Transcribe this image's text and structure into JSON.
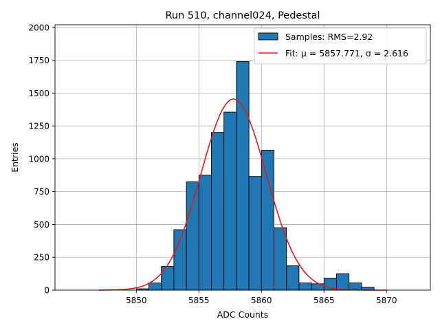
{
  "chart_data": {
    "type": "bar",
    "title": "Run 510, channel024, Pedestal",
    "xlabel": "ADC Counts",
    "ylabel": "Entries",
    "xlim": [
      5843.5,
      5873.5
    ],
    "ylim": [
      0,
      2020
    ],
    "xticks": [
      5850,
      5855,
      5860,
      5865,
      5870
    ],
    "yticks": [
      0,
      250,
      500,
      750,
      1000,
      1250,
      1500,
      1750,
      2000
    ],
    "grid": true,
    "legend_position": "top-right",
    "bin_width": 1,
    "bins": [
      {
        "left": 5850,
        "count": 10
      },
      {
        "left": 5851,
        "count": 55
      },
      {
        "left": 5852,
        "count": 180
      },
      {
        "left": 5853,
        "count": 460
      },
      {
        "left": 5854,
        "count": 825
      },
      {
        "left": 5855,
        "count": 875
      },
      {
        "left": 5856,
        "count": 1200
      },
      {
        "left": 5857,
        "count": 1355
      },
      {
        "left": 5858,
        "count": 1740
      },
      {
        "left": 5859,
        "count": 865
      },
      {
        "left": 5860,
        "count": 1065
      },
      {
        "left": 5861,
        "count": 475
      },
      {
        "left": 5862,
        "count": 185
      },
      {
        "left": 5863,
        "count": 55
      },
      {
        "left": 5864,
        "count": 48
      },
      {
        "left": 5865,
        "count": 92
      },
      {
        "left": 5866,
        "count": 125
      },
      {
        "left": 5867,
        "count": 55
      },
      {
        "left": 5868,
        "count": 22
      }
    ],
    "fit": {
      "mu": 5857.771,
      "sigma": 2.616,
      "amplitude": 1455,
      "x_range": [
        5847,
        5870
      ]
    },
    "legend": [
      {
        "label": "Samples: RMS=2.92",
        "color": "#1f77b4",
        "kind": "patch"
      },
      {
        "label": "Fit: μ = 5857.771, σ = 2.616",
        "color": "#e31a1c",
        "kind": "line"
      }
    ]
  }
}
